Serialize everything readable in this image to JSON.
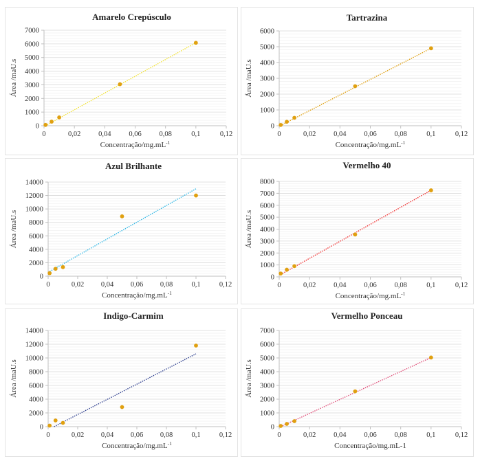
{
  "colors": {
    "marker": "#E0A010",
    "grid_major": "#d9d9d9",
    "grid_minor": "#efefef",
    "axis": "#bfbfbf"
  },
  "chart_data": [
    {
      "type": "scatter",
      "title": "Amarelo Crepúsculo",
      "xlabel": "Concentração/mg.mL",
      "xlabel_sup": "-1",
      "ylabel": "Área /maU.s",
      "xlim": [
        0,
        0.12
      ],
      "ylim": [
        0,
        7000
      ],
      "xticks": [
        "0",
        "0,02",
        "0,04",
        "0,06",
        "0,08",
        "0,1",
        "0,12"
      ],
      "yticks": [
        "0",
        "1000",
        "2000",
        "3000",
        "4000",
        "5000",
        "6000",
        "7000"
      ],
      "grid": true,
      "points": {
        "x": [
          0.001,
          0.005,
          0.01,
          0.05,
          0.1
        ],
        "y": [
          60,
          300,
          610,
          3040,
          6080
        ]
      },
      "trendline": {
        "x": [
          0.001,
          0.1
        ],
        "y": [
          0,
          6080
        ],
        "color": "#F2E33A"
      }
    },
    {
      "type": "scatter",
      "title": "Tartrazina",
      "xlabel": "Concentração/mg.mL",
      "xlabel_sup": "-1",
      "ylabel": "Área /maU.s",
      "xlim": [
        0,
        0.12
      ],
      "ylim": [
        0,
        6000
      ],
      "xticks": [
        "0",
        "0,02",
        "0,04",
        "0,06",
        "0,08",
        "0,1",
        "0,12"
      ],
      "yticks": [
        "0",
        "1000",
        "2000",
        "3000",
        "4000",
        "5000",
        "6000"
      ],
      "grid": true,
      "points": {
        "x": [
          0.001,
          0.005,
          0.01,
          0.05,
          0.1
        ],
        "y": [
          50,
          250,
          500,
          2500,
          4900
        ]
      },
      "trendline": {
        "x": [
          0.001,
          0.1
        ],
        "y": [
          20,
          4900
        ],
        "color": "#E0A010"
      }
    },
    {
      "type": "scatter",
      "title": "Azul Brilhante",
      "xlabel": "Concentração/mg.mL",
      "xlabel_sup": "-1",
      "ylabel": "Área /maU.s",
      "xlim": [
        0,
        0.12
      ],
      "ylim": [
        0,
        14000
      ],
      "xticks": [
        "0",
        "0,02",
        "0,04",
        "0,06",
        "0,08",
        "0,1",
        "0,12"
      ],
      "yticks": [
        "0",
        "2000",
        "4000",
        "6000",
        "8000",
        "10000",
        "12000",
        "14000"
      ],
      "grid": true,
      "points": {
        "x": [
          0.001,
          0.005,
          0.01,
          0.05,
          0.1
        ],
        "y": [
          450,
          1100,
          1350,
          8900,
          12000
        ]
      },
      "trendline": {
        "x": [
          0.001,
          0.1
        ],
        "y": [
          700,
          13000
        ],
        "color": "#33B8E6"
      }
    },
    {
      "type": "scatter",
      "title": "Vermelho 40",
      "xlabel": "Concentração/mg.mL",
      "xlabel_sup": "-1",
      "ylabel": "Área /maU.s",
      "xlim": [
        0,
        0.12
      ],
      "ylim": [
        0,
        8000
      ],
      "xticks": [
        "0",
        "0,02",
        "0,04",
        "0,06",
        "0,08",
        "0,1",
        "0,12"
      ],
      "yticks": [
        "0",
        "1000",
        "2000",
        "3000",
        "4000",
        "5000",
        "6000",
        "7000",
        "8000"
      ],
      "grid": true,
      "points": {
        "x": [
          0.001,
          0.005,
          0.01,
          0.05,
          0.1
        ],
        "y": [
          280,
          600,
          900,
          3550,
          7250
        ]
      },
      "trendline": {
        "x": [
          0.001,
          0.1
        ],
        "y": [
          200,
          7250
        ],
        "color": "#F03030"
      }
    },
    {
      "type": "scatter",
      "title": "Indigo-Carmim",
      "xlabel": "Concentração/mg.mL",
      "xlabel_sup": "-1",
      "ylabel": "Área /maU.s",
      "xlim": [
        0,
        0.12
      ],
      "ylim": [
        0,
        14000
      ],
      "xticks": [
        "0",
        "0,02",
        "0,04",
        "0,06",
        "0,08",
        "0,1",
        "0,12"
      ],
      "yticks": [
        "0",
        "2000",
        "4000",
        "6000",
        "8000",
        "10000",
        "12000",
        "14000"
      ],
      "grid": true,
      "points": {
        "x": [
          0.001,
          0.005,
          0.01,
          0.05,
          0.1
        ],
        "y": [
          150,
          900,
          550,
          2850,
          11800
        ]
      },
      "trendline": {
        "x": [
          0.004,
          0.1
        ],
        "y": [
          0,
          10600
        ],
        "color": "#2E3F8F"
      }
    },
    {
      "type": "scatter",
      "title": "Vermelho Ponceau",
      "xlabel": "Concentração/mg.mL-1",
      "xlabel_sup": "",
      "ylabel": "Área /maU.s",
      "xlim": [
        0,
        0.12
      ],
      "ylim": [
        0,
        7000
      ],
      "xticks": [
        "0",
        "0,02",
        "0,04",
        "0,06",
        "0,08",
        "0,1",
        "0,12"
      ],
      "yticks": [
        "0",
        "1000",
        "2000",
        "3000",
        "4000",
        "5000",
        "6000",
        "7000"
      ],
      "grid": true,
      "points": {
        "x": [
          0.001,
          0.005,
          0.01,
          0.05,
          0.1
        ],
        "y": [
          50,
          200,
          400,
          2570,
          5030
        ]
      },
      "trendline": {
        "x": [
          0.001,
          0.1
        ],
        "y": [
          0,
          5030
        ],
        "color": "#E0507A"
      }
    }
  ]
}
